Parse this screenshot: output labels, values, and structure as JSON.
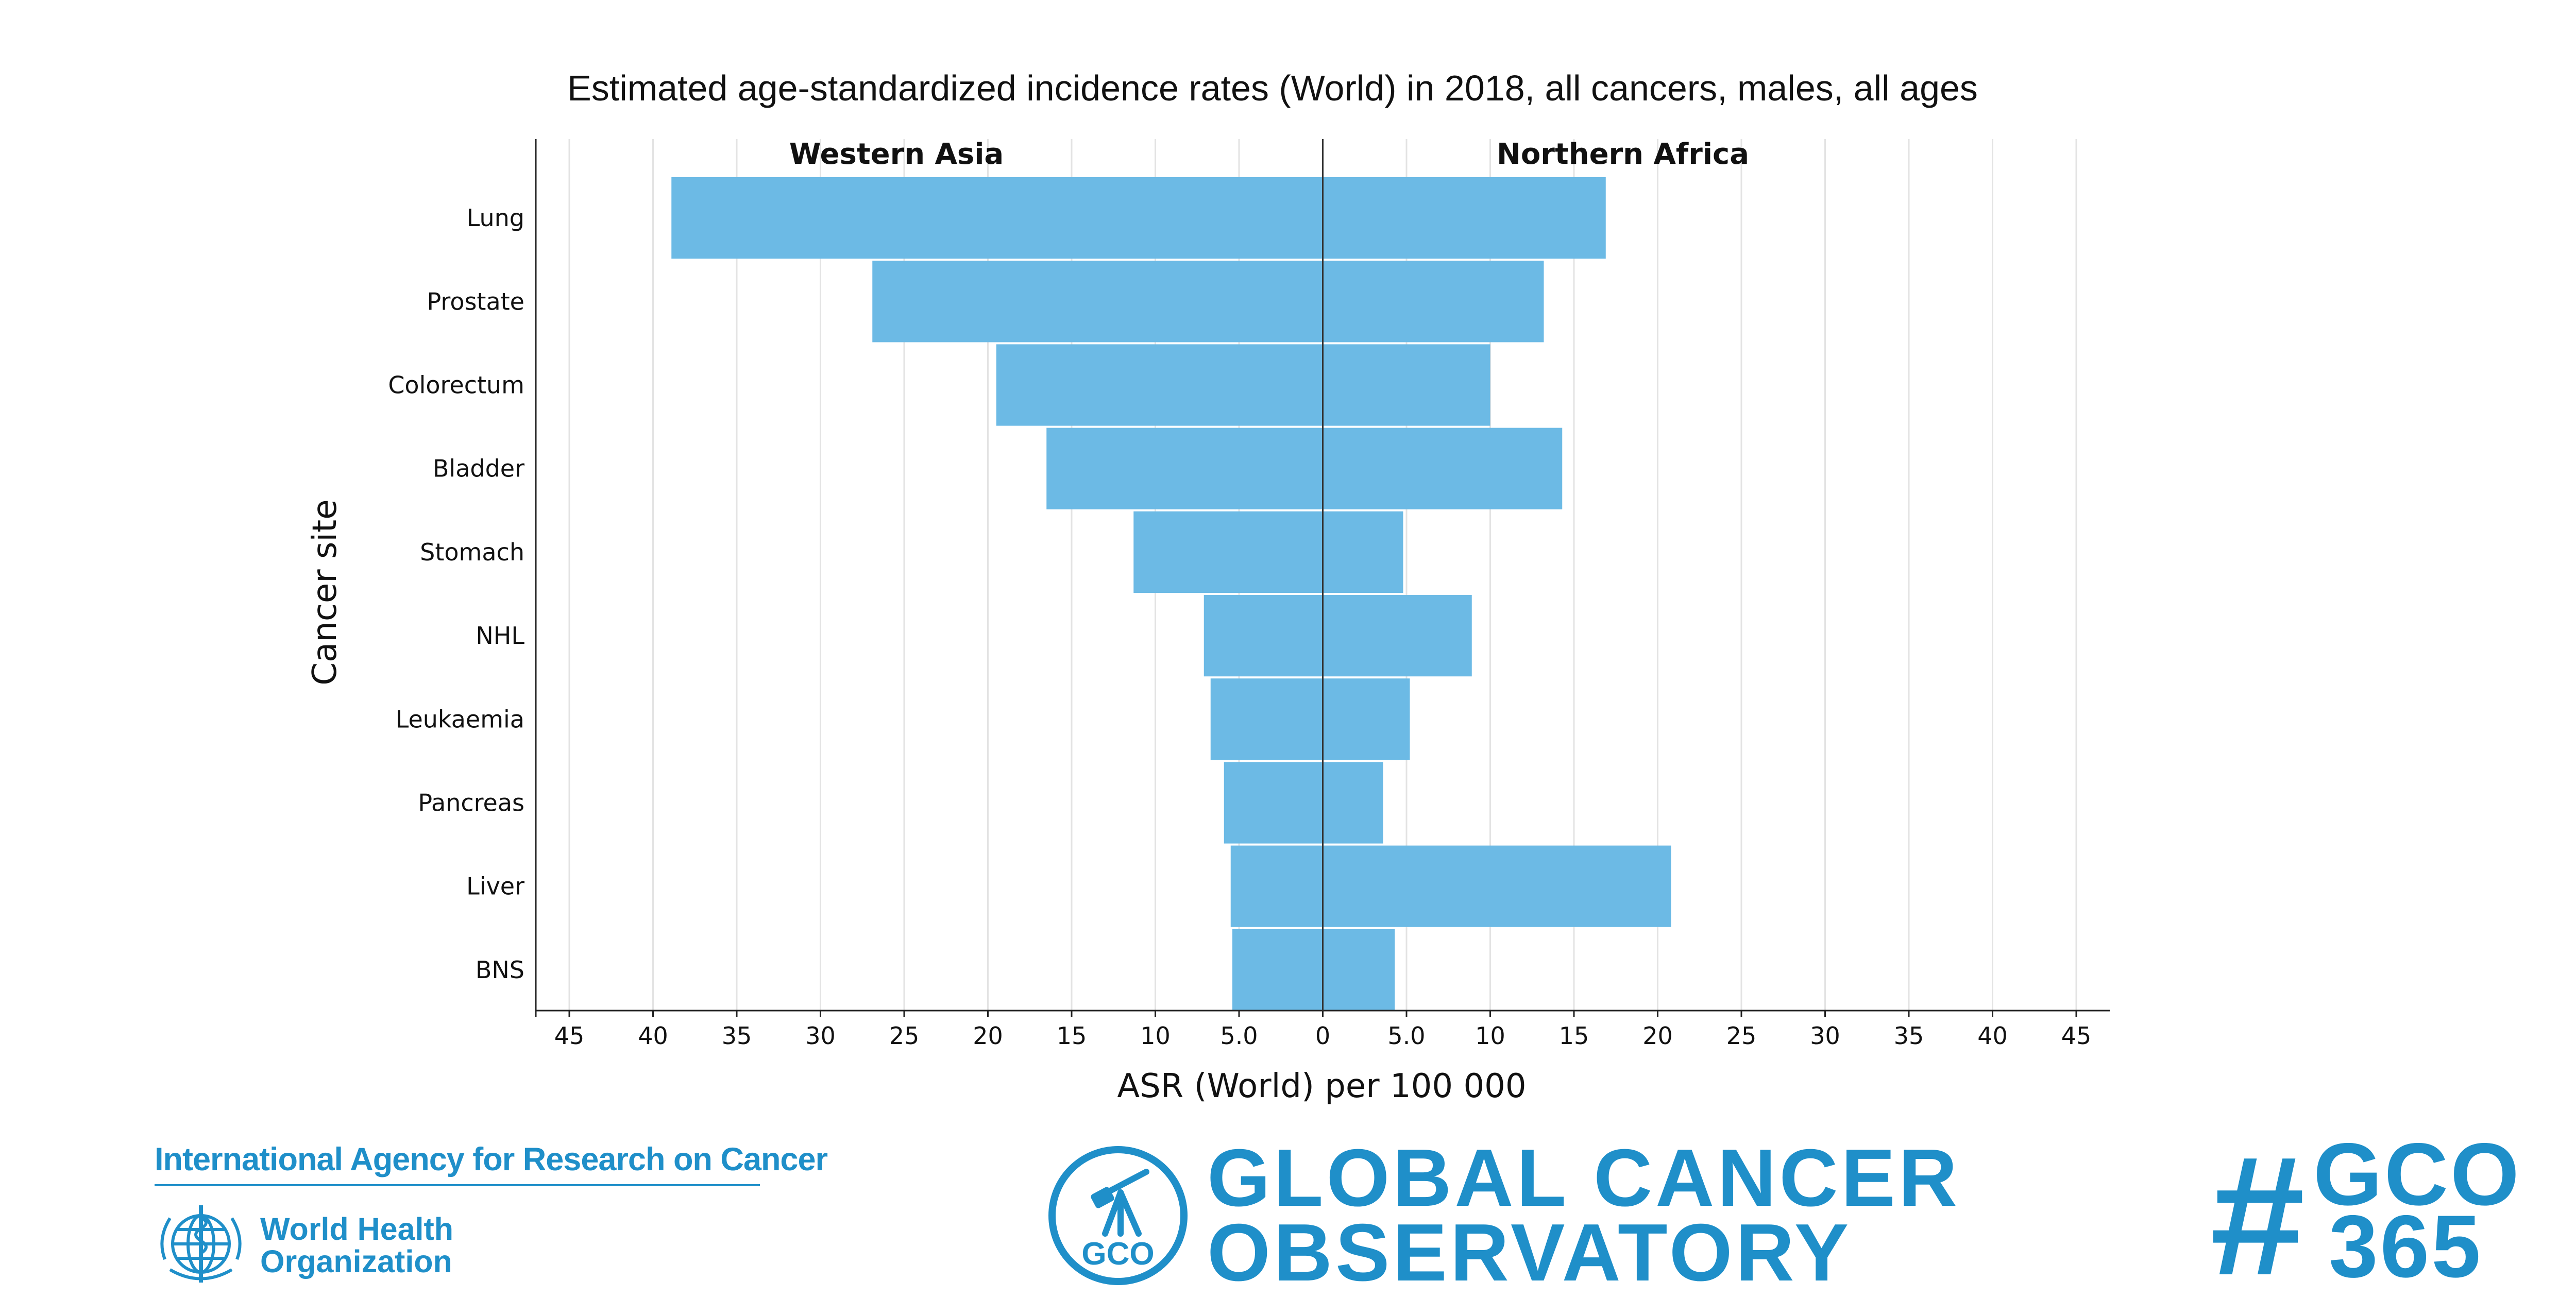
{
  "chart_data": {
    "type": "bar",
    "orientation": "horizontal-mirrored",
    "title": "Estimated age-standardized incidence rates (World) in 2018, all cancers, males, all ages",
    "xlabel": "ASR (World) per 100 000",
    "ylabel": "Cancer site",
    "categories": [
      "Lung",
      "Prostate",
      "Colorectum",
      "Bladder",
      "Stomach",
      "NHL",
      "Leukaemia",
      "Pancreas",
      "Liver",
      "BNS"
    ],
    "series": [
      {
        "name": "Western Asia",
        "side": "left",
        "values": [
          38.9,
          26.9,
          19.5,
          16.5,
          11.3,
          7.1,
          6.7,
          5.9,
          5.5,
          5.4
        ]
      },
      {
        "name": "Northern Africa",
        "side": "right",
        "values": [
          16.9,
          13.2,
          10.0,
          14.3,
          4.8,
          8.9,
          5.2,
          3.6,
          20.8,
          4.3
        ]
      }
    ],
    "xlim": [
      -47,
      47
    ],
    "xticks": [
      {
        "value": -45,
        "label": "45"
      },
      {
        "value": -40,
        "label": "40"
      },
      {
        "value": -35,
        "label": "35"
      },
      {
        "value": -30,
        "label": "30"
      },
      {
        "value": -25,
        "label": "25"
      },
      {
        "value": -20,
        "label": "20"
      },
      {
        "value": -15,
        "label": "15"
      },
      {
        "value": -10,
        "label": "10"
      },
      {
        "value": -5,
        "label": "5.0"
      },
      {
        "value": 0,
        "label": "0"
      },
      {
        "value": 5,
        "label": "5.0"
      },
      {
        "value": 10,
        "label": "10"
      },
      {
        "value": 15,
        "label": "15"
      },
      {
        "value": 20,
        "label": "20"
      },
      {
        "value": 25,
        "label": "25"
      },
      {
        "value": 30,
        "label": "30"
      },
      {
        "value": 35,
        "label": "35"
      },
      {
        "value": 40,
        "label": "40"
      },
      {
        "value": 45,
        "label": "45"
      }
    ],
    "grid": true,
    "bar_color": "#6cbae5"
  },
  "footer": {
    "iarc_name": "International Agency for Research on Cancer",
    "who_line1": "World Health",
    "who_line2": "Organization",
    "gco_badge": "GCO",
    "gco_line1": "GLOBAL CANCER",
    "gco_line2": "OBSERVATORY",
    "hashtag_symbol": "#",
    "hashtag_line1": "GCO",
    "hashtag_line2": "365",
    "brand_color": "#1f8fc9"
  }
}
